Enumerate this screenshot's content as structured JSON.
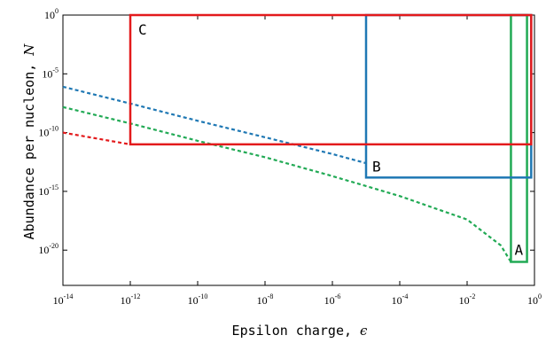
{
  "chart_data": {
    "type": "line",
    "xlabel": "Epsilon charge, ",
    "xlabel_symbol": "ϵ",
    "ylabel": "Abundance per nucleon, ",
    "ylabel_symbol": "N",
    "x_scale": "log",
    "y_scale": "log",
    "xlim": [
      1e-14,
      1
    ],
    "ylim": [
      1e-23,
      1
    ],
    "grid": false,
    "legend": "none",
    "x_ticks": [
      {
        "base": "10",
        "exp": "-14",
        "value": 1e-14
      },
      {
        "base": "10",
        "exp": "-12",
        "value": 1e-12
      },
      {
        "base": "10",
        "exp": "-10",
        "value": 1e-10
      },
      {
        "base": "10",
        "exp": "-8",
        "value": 1e-08
      },
      {
        "base": "10",
        "exp": "-6",
        "value": 1e-06
      },
      {
        "base": "10",
        "exp": "-4",
        "value": 0.0001
      },
      {
        "base": "10",
        "exp": "-2",
        "value": 0.01
      },
      {
        "base": "10",
        "exp": "0",
        "value": 1
      }
    ],
    "y_ticks": [
      {
        "base": "10",
        "exp": "0",
        "value": 1
      },
      {
        "base": "10",
        "exp": "-5",
        "value": 1e-05
      },
      {
        "base": "10",
        "exp": "-10",
        "value": 1e-10
      },
      {
        "base": "10",
        "exp": "-15",
        "value": 1e-15
      },
      {
        "base": "10",
        "exp": "-20",
        "value": 1e-20
      }
    ],
    "series": [
      {
        "color": "#e31a1c",
        "dash": true,
        "points": [
          [
            1e-14,
            1e-10
          ],
          [
            1e-12,
            1e-11
          ]
        ]
      },
      {
        "color": "#1f78b4",
        "dash": true,
        "points": [
          [
            1e-14,
            8e-07
          ],
          [
            1e-12,
            3e-08
          ],
          [
            1e-10,
            1e-09
          ],
          [
            1e-08,
            4e-11
          ],
          [
            1e-06,
            1.5e-12
          ],
          [
            1e-05,
            2.5e-13
          ]
        ]
      },
      {
        "color": "#22aa55",
        "dash": true,
        "points": [
          [
            1e-14,
            1.5e-08
          ],
          [
            1e-12,
            6e-10
          ],
          [
            1e-10,
            2e-11
          ],
          [
            1e-08,
            8e-13
          ],
          [
            1e-06,
            2e-14
          ],
          [
            0.0001,
            4e-16
          ],
          [
            0.01,
            4e-18
          ],
          [
            0.1,
            2.5e-20
          ],
          [
            0.2,
            1e-21
          ]
        ]
      }
    ],
    "regions": [
      {
        "label": "A",
        "color": "#22aa55",
        "x": [
          0.2,
          0.6
        ],
        "y": [
          1e-21,
          1
        ],
        "label_corner": "bottom-inside"
      },
      {
        "label": "B",
        "color": "#1f78b4",
        "x": [
          1e-05,
          0.8
        ],
        "y": [
          1.5e-14,
          1
        ],
        "label_corner": "bottom-left-inside"
      },
      {
        "label": "C",
        "color": "#e31a1c",
        "x": [
          1e-12,
          0.8
        ],
        "y": [
          1e-11,
          1
        ],
        "label_corner": "top-left-inside"
      }
    ]
  }
}
